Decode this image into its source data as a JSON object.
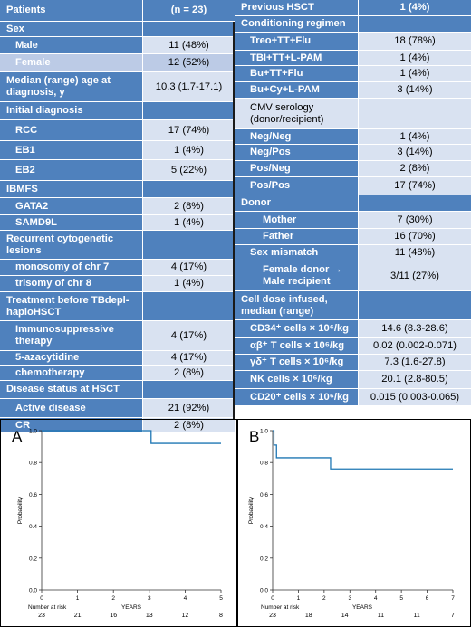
{
  "left_table": [
    {
      "style": "head",
      "label": "Patients",
      "value": "(n = 23)",
      "h": 24
    },
    {
      "style": "hdr",
      "label": "Sex",
      "value": "",
      "h": 17
    },
    {
      "style": "sub",
      "label": "Male",
      "value": "11 (48%)",
      "h": 19
    },
    {
      "style": "sub alt",
      "label": "Female",
      "value": "12 (52%)",
      "h": 20
    },
    {
      "style": "hdr",
      "label": "Median (range) age at diagnosis, y",
      "value": "10.3 (1.7-17.1)",
      "h": 33,
      "valstyle": "dark"
    },
    {
      "style": "hdr",
      "label": "Initial diagnosis",
      "value": "",
      "h": 20
    },
    {
      "style": "sub",
      "label": "RCC",
      "value": "17 (74%)",
      "h": 23
    },
    {
      "style": "sub",
      "label": "EB1",
      "value": "1 (4%)",
      "h": 21
    },
    {
      "style": "sub",
      "label": "EB2",
      "value": "5 (22%)",
      "h": 23
    },
    {
      "style": "hdr",
      "label": "IBMFS",
      "value": "",
      "h": 19
    },
    {
      "style": "sub",
      "label": "GATA2",
      "value": "2 (8%)",
      "h": 19
    },
    {
      "style": "sub",
      "label": "SAMD9L",
      "value": "1 (4%)",
      "h": 17
    },
    {
      "style": "hdr",
      "label": "Recurrent cytogenetic lesions",
      "value": "",
      "h": 32
    },
    {
      "style": "sub",
      "label": "monosomy of chr 7",
      "value": "4 (17%)",
      "h": 18
    },
    {
      "style": "sub",
      "label": "trisomy of chr 8",
      "value": "1 (4%)",
      "h": 18
    },
    {
      "style": "hdr",
      "label": "Treatment before TBdepl-haploHSCT",
      "value": "",
      "h": 32
    },
    {
      "style": "sub",
      "label": "Immunosuppressive therapy",
      "value": "4 (17%)",
      "h": 33
    },
    {
      "style": "sub",
      "label": "5-azacytidine",
      "value": "4 (17%)",
      "h": 16
    },
    {
      "style": "sub",
      "label": "chemotherapy",
      "value": "2 (8%)",
      "h": 17
    },
    {
      "style": "hdr",
      "label": "Disease status at HSCT",
      "value": "",
      "h": 20
    },
    {
      "style": "sub",
      "label": "Active disease",
      "value": "21 (92%)",
      "h": 21
    },
    {
      "style": "sub",
      "label": "CR",
      "value": "2 (8%)",
      "h": 17
    }
  ],
  "right_table": [
    {
      "style": "hdr",
      "label": "Previous HSCT",
      "value": "1 (4%)",
      "h": 18
    },
    {
      "style": "hdr",
      "label": "Conditioning regimen",
      "value": "",
      "h": 18
    },
    {
      "style": "sub",
      "label": "Treo+TT+Flu",
      "value": "18 (78%)",
      "h": 20
    },
    {
      "style": "sub",
      "label": "TBI+TT+L-PAM",
      "value": "1 (4%)",
      "h": 17
    },
    {
      "style": "sub",
      "label": "Bu+TT+Flu",
      "value": "1 (4%)",
      "h": 18
    },
    {
      "style": "sub",
      "label": "Bu+Cy+L-PAM",
      "value": "3 (14%)",
      "h": 18
    },
    {
      "style": "plain",
      "label": "CMV serology (donor/recipient)",
      "value": "",
      "h": 34
    },
    {
      "style": "sub",
      "label": "Neg/Neg",
      "value": "1 (4%)",
      "h": 17
    },
    {
      "style": "sub",
      "label": "Neg/Pos",
      "value": "3 (14%)",
      "h": 18
    },
    {
      "style": "sub",
      "label": "Pos/Neg",
      "value": "2 (8%)",
      "h": 18
    },
    {
      "style": "sub",
      "label": "Pos/Pos",
      "value": "17 (74%)",
      "h": 20
    },
    {
      "style": "hdr",
      "label": "Donor",
      "value": "",
      "h": 18
    },
    {
      "style": "sub sub2",
      "label": "Mother",
      "value": "7 (30%)",
      "h": 19
    },
    {
      "style": "sub sub2",
      "label": "Father",
      "value": "16 (70%)",
      "h": 18
    },
    {
      "style": "sub",
      "label": "Sex mismatch",
      "value": "11 (48%)",
      "h": 18
    },
    {
      "style": "sub sub2",
      "label": "Female donor → Male recipient",
      "value": "3/11 (27%)",
      "h": 33
    },
    {
      "style": "hdr",
      "label": "Cell dose infused, median (range)",
      "value": "",
      "h": 32
    },
    {
      "style": "sub",
      "label": "CD34⁺ cells × 10⁶/kg",
      "value": "14.6 (8.3-28.6)",
      "h": 20
    },
    {
      "style": "sub",
      "label": "αβ⁺ T cells × 10⁶/kg",
      "value": "0.02 (0.002-0.071)",
      "h": 18
    },
    {
      "style": "sub",
      "label": "γδ⁺ T cells × 10⁶/kg",
      "value": "7.3 (1.6-27.8)",
      "h": 18
    },
    {
      "style": "sub",
      "label": "NK cells × 10⁶/kg",
      "value": "20.1 (2.8-80.5)",
      "h": 20
    },
    {
      "style": "sub",
      "label": "CD20⁺ cells × 10⁶/kg",
      "value": "0.015 (0.003-0.065)",
      "h": 19
    }
  ],
  "chart_data": [
    {
      "type": "line",
      "panel_label": "A",
      "ylabel": "Probability",
      "xlabel": "YEARS",
      "xlim": [
        0,
        5
      ],
      "ylim": [
        0,
        1.0
      ],
      "xticks": [
        0,
        1,
        2,
        3,
        4,
        5
      ],
      "yticks": [
        "0.0",
        "0.2",
        "0.4",
        "0.6",
        "0.8",
        "1.0"
      ],
      "series": [
        {
          "x": [
            0,
            3.05,
            3.05,
            5
          ],
          "y": [
            1.0,
            1.0,
            0.92,
            0.92
          ]
        }
      ],
      "risk_title": "Number at risk",
      "at_risk": [
        "23",
        "21",
        "16",
        "13",
        "12",
        "8"
      ]
    },
    {
      "type": "line",
      "panel_label": "B",
      "ylabel": "Probability",
      "xlabel": "YEARS",
      "xlim": [
        0,
        7
      ],
      "ylim": [
        0,
        1.0
      ],
      "xticks": [
        0,
        1,
        2,
        3,
        4,
        5,
        6,
        7
      ],
      "yticks": [
        "0.0",
        "0.2",
        "0.4",
        "0.6",
        "0.8",
        "1.0"
      ],
      "series": [
        {
          "x": [
            0,
            0.05,
            0.05,
            0.15,
            0.15,
            2.25,
            2.25,
            7
          ],
          "y": [
            1.0,
            1.0,
            0.91,
            0.91,
            0.83,
            0.83,
            0.76,
            0.76
          ]
        }
      ],
      "risk_title": "Number at risk",
      "at_risk": [
        "23",
        "18",
        "14",
        "11",
        "11",
        "7"
      ],
      "at_risk_x": [
        0,
        1.4,
        2.8,
        4.2,
        5.6,
        7
      ]
    }
  ],
  "colors": {
    "header_blue": "#4f81bd",
    "light_cell": "#d9e2f1",
    "curve": "#1f77b4"
  }
}
